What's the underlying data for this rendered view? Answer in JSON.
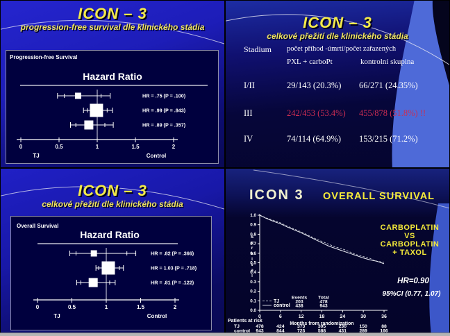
{
  "page": {
    "background": "#000000",
    "accent_yellow": "#f3ea49",
    "highlight_red": "#cb2d52"
  },
  "slides": {
    "top_left": {
      "title": "ICON – 3",
      "subtitle": "progression-free survival dle klinického stádia"
    },
    "top_right": {
      "title": "ICON – 3",
      "subtitle": "celkové přežití dle klinického stádia",
      "table": {
        "col0_header": "Stadium",
        "span_header": "počet příhod -úmrtí/počet zařazených",
        "col1_header": "PXL + carboPt",
        "col2_header": "kontrolní skupina",
        "rows": [
          {
            "stage": "I/II",
            "pxl": "29/143 (20.3%)",
            "control": "66/271 (24.35%)",
            "highlight": false
          },
          {
            "stage": "III",
            "pxl": "242/453 (53.4%)",
            "control": "455/878 (51.8%) !!",
            "highlight": true
          },
          {
            "stage": "IV",
            "pxl": "74/114 (64.9%)",
            "control": "153/215 (71.2%)",
            "highlight": false
          }
        ]
      }
    },
    "bottom_left": {
      "title": "ICON – 3",
      "subtitle": "celkové přežití dle klinického stádia"
    },
    "bottom_right": {
      "title_left": "ICON 3",
      "title_right": "OVERALL SURVIVAL",
      "comparison": [
        "CARBOPLATIN",
        "VS",
        "CARBOPLATIN",
        "+ TAXOL"
      ],
      "hr_text": "HR=0.90",
      "ci_text": "95%CI (0.77, 1.07)"
    }
  },
  "chart_data": [
    {
      "id": "pfs-forest",
      "type": "scatter",
      "subtype": "forest-plot",
      "panel_label": "Progression-free Survival",
      "title": "Hazard Ratio",
      "xlim": [
        0,
        2
      ],
      "x_ticks": [
        0,
        0.5,
        1,
        1.5,
        2
      ],
      "x_tick_labels": [
        "0",
        "0.5",
        "1",
        "1.5",
        "2"
      ],
      "ref_line": 1,
      "axis_left_label": "TJ",
      "axis_right_label": "Control",
      "rows": [
        {
          "hr": 0.75,
          "ci_low": 0.48,
          "ci_high": 1.17,
          "inner_low": 0.57,
          "inner_high": 1.05,
          "square": "small",
          "label": "HR = .75 (P = .100)"
        },
        {
          "hr": 0.99,
          "ci_low": 0.82,
          "ci_high": 1.2,
          "inner_low": 0.87,
          "inner_high": 1.13,
          "square": "large",
          "label": "HR = .99 (P = .843)"
        },
        {
          "hr": 0.89,
          "ci_low": 0.65,
          "ci_high": 1.21,
          "inner_low": 0.72,
          "inner_high": 1.1,
          "square": "medium",
          "label": "HR = .89 (P = .357)"
        }
      ]
    },
    {
      "id": "os-forest",
      "type": "scatter",
      "subtype": "forest-plot",
      "panel_label": "Overall Survival",
      "title": "Hazard Ratio",
      "xlim": [
        0,
        2
      ],
      "x_ticks": [
        0,
        0.5,
        1,
        1.5,
        2
      ],
      "x_tick_labels": [
        "0",
        "0.5",
        "1",
        "1.5",
        "2"
      ],
      "ref_line": 1,
      "axis_left_label": "TJ",
      "axis_right_label": "Control",
      "rows": [
        {
          "hr": 0.82,
          "ci_low": 0.47,
          "ci_high": 1.43,
          "inner_low": 0.56,
          "inner_high": 1.3,
          "square": "small",
          "label": "HR = .82 (P = .366)"
        },
        {
          "hr": 1.03,
          "ci_low": 0.85,
          "ci_high": 1.25,
          "inner_low": 0.89,
          "inner_high": 1.19,
          "square": "large",
          "label": "HR = 1.03 (P = .718)"
        },
        {
          "hr": 0.81,
          "ci_low": 0.57,
          "ci_high": 1.13,
          "inner_low": 0.63,
          "inner_high": 1.05,
          "square": "medium",
          "label": "HR =  .81 (P = .122)"
        }
      ]
    },
    {
      "id": "km-overall-survival",
      "type": "line",
      "subtype": "kaplan-meier",
      "ylabel": "Survival",
      "xlabel": "Months from randomization",
      "x_ticks": [
        0,
        6,
        12,
        18,
        24,
        30,
        36
      ],
      "y_ticks": [
        0.0,
        0.1,
        0.2,
        0.3,
        0.4,
        0.5,
        0.6,
        0.7,
        0.8,
        0.9,
        1.0
      ],
      "ylim": [
        0.0,
        1.0
      ],
      "xlim": [
        0,
        36
      ],
      "legend": {
        "events_header": "Events",
        "total_header": "Total"
      },
      "series": [
        {
          "name": "TJ",
          "events": 203,
          "total": 478,
          "color": "#b9bdc9",
          "dash": "3 2",
          "points": [
            [
              0,
              1.0
            ],
            [
              2,
              0.97
            ],
            [
              4,
              0.945
            ],
            [
              6,
              0.92
            ],
            [
              8,
              0.885
            ],
            [
              10,
              0.855
            ],
            [
              12,
              0.825
            ],
            [
              14,
              0.79
            ],
            [
              16,
              0.755
            ],
            [
              18,
              0.725
            ],
            [
              20,
              0.695
            ],
            [
              22,
              0.665
            ],
            [
              24,
              0.645
            ],
            [
              26,
              0.615
            ],
            [
              28,
              0.585
            ],
            [
              30,
              0.565
            ],
            [
              32,
              0.545
            ],
            [
              33,
              0.525
            ],
            [
              34,
              0.515
            ],
            [
              36,
              0.505
            ]
          ]
        },
        {
          "name": "control",
          "events": 438,
          "total": 943,
          "color": "#eceef5",
          "dash": "",
          "points": [
            [
              0,
              1.0
            ],
            [
              2,
              0.965
            ],
            [
              4,
              0.935
            ],
            [
              6,
              0.91
            ],
            [
              8,
              0.875
            ],
            [
              10,
              0.845
            ],
            [
              12,
              0.815
            ],
            [
              14,
              0.78
            ],
            [
              16,
              0.745
            ],
            [
              18,
              0.71
            ],
            [
              20,
              0.675
            ],
            [
              22,
              0.65
            ],
            [
              24,
              0.625
            ],
            [
              26,
              0.6
            ],
            [
              28,
              0.575
            ],
            [
              30,
              0.55
            ],
            [
              32,
              0.53
            ],
            [
              34,
              0.515
            ],
            [
              36,
              0.49
            ]
          ]
        }
      ],
      "at_risk": {
        "label": "Patients at risk",
        "rows": [
          {
            "name": "TJ",
            "values": [
              478,
              424,
              373,
              305,
              230,
              150,
              88
            ]
          },
          {
            "name": "control",
            "values": [
              943,
              844,
              725,
              588,
              431,
              289,
              166
            ]
          }
        ]
      }
    }
  ]
}
